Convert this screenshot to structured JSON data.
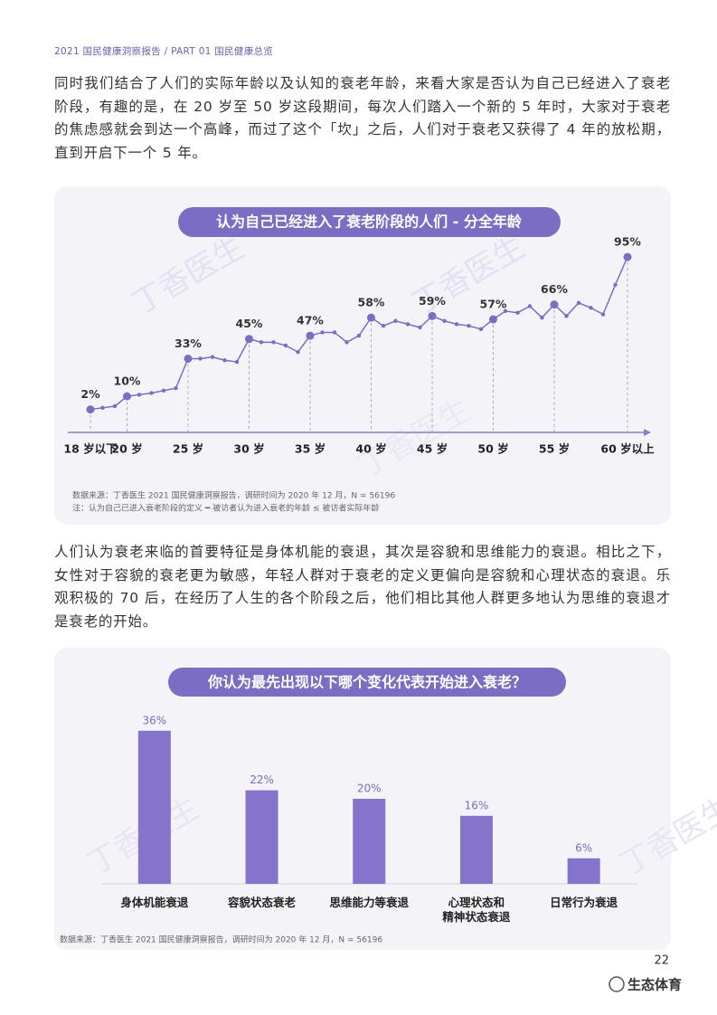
{
  "header": "2021 国民健康洞察报告 / PART 01 国民健康总览",
  "paragraphs": [
    "同时我们结合了人们的实际年龄以及认知的衰老年龄，来看大家是否认为自己已经进入了衰老阶段，有趣的是，在 20 岁至 50 岁这段期间，每次人们踏入一个新的 5 年时，大家对于衰老的焦虑感就会到达一个高峰，而过了这个「坎」之后，人们对于衰老又获得了 4 年的放松期，直到开启下一个 5 年。",
    "人们认为衰老来临的首要特征是身体机能的衰退，其次是容貌和思维能力的衰退。相比之下，女性对于容貌的衰老更为敏感，年轻人群对于衰老的定义更偏向是容貌和心理状态的衰退。乐观积极的 70 后，在经历了人生的各个阶段之后，他们相比其他人群更多地认为思维的衰退才是衰老的开始。"
  ],
  "watermark": "丁香医生",
  "page_number": "22",
  "brand": "生态体育",
  "chart_data": [
    {
      "type": "line",
      "title": "认为自己已经进入了衰老阶段的人们 - 分全年龄",
      "categories": [
        "18 岁以下",
        null,
        null,
        "20 岁",
        null,
        null,
        null,
        null,
        "25 岁",
        null,
        null,
        null,
        null,
        "30 岁",
        null,
        null,
        null,
        null,
        "35 岁",
        null,
        null,
        null,
        null,
        "40 岁",
        null,
        null,
        null,
        null,
        "45 岁",
        null,
        null,
        null,
        null,
        "50 岁",
        null,
        null,
        null,
        null,
        "55 岁",
        null,
        null,
        null,
        null,
        null,
        "60 岁以上"
      ],
      "values": [
        2,
        3,
        4,
        10,
        11,
        12,
        13.5,
        15,
        33,
        33,
        34,
        32,
        31,
        45,
        43,
        43,
        41,
        37,
        47,
        49,
        49,
        43,
        47,
        58,
        53,
        56,
        54,
        52,
        59,
        56,
        54,
        53,
        51,
        57,
        62,
        61,
        65,
        58,
        66,
        59,
        67,
        64,
        60,
        78,
        95
      ],
      "value_labels": [
        "2%",
        null,
        null,
        "10%",
        null,
        null,
        null,
        null,
        "33%",
        null,
        null,
        null,
        null,
        "45%",
        null,
        null,
        null,
        null,
        "47%",
        null,
        null,
        null,
        null,
        "58%",
        null,
        null,
        null,
        null,
        "59%",
        null,
        null,
        null,
        null,
        "57%",
        null,
        null,
        null,
        null,
        "66%",
        null,
        null,
        null,
        null,
        null,
        "95%"
      ],
      "color": "#7b6cc4",
      "ylim": [
        -12,
        100
      ],
      "source": "数据来源：丁香医生 2021 国民健康洞察报告，调研时间为 2020 年 12 月，N = 56196",
      "note": "注：认为自己已进入衰老阶段的定义 ━ 被访者认为进入衰老的年龄 ≤ 被访者实际年龄"
    },
    {
      "type": "bar",
      "title": "你认为最先出现以下哪个变化代表开始进入衰老？",
      "categories": [
        "身体机能衰退",
        "容貌状态衰老",
        "思维能力等衰退",
        "心理状态和\n精神状态衰退",
        "日常行为衰退"
      ],
      "values": [
        36,
        22,
        20,
        16,
        6
      ],
      "value_labels": [
        "36%",
        "22%",
        "20%",
        "16%",
        "6%"
      ],
      "color": "#8573cc",
      "ylim": [
        0,
        40
      ],
      "source": "数据来源：丁香医生 2021 国民健康洞察报告，调研时间为 2020 年 12 月，N = 56196"
    }
  ]
}
